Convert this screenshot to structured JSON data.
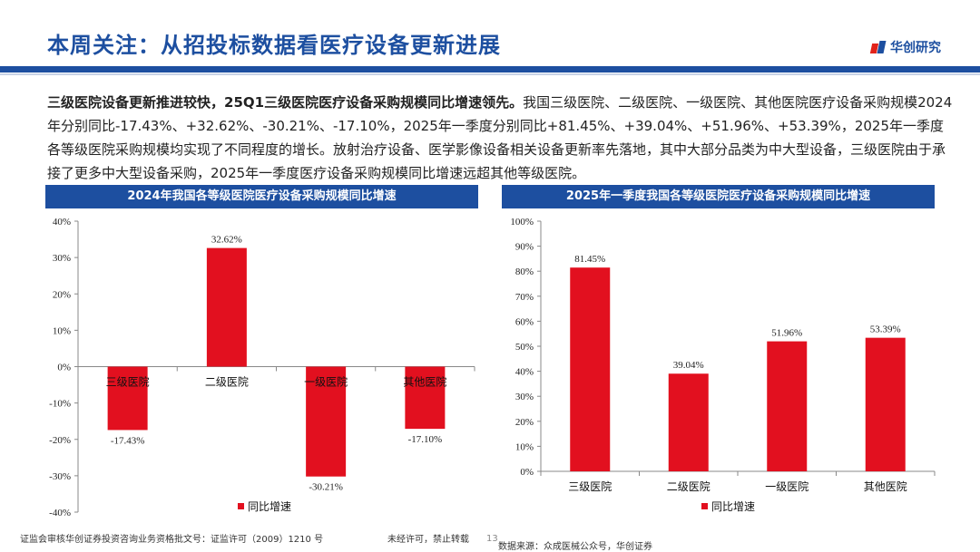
{
  "header": {
    "title": "本周关注：从招投标数据看医疗设备更新进展",
    "logo_text": "华创研究"
  },
  "summary": {
    "bold": "三级医院设备更新推进较快，25Q1三级医院医疗设备采购规模同比增速领先。",
    "text": "我国三级医院、二级医院、一级医院、其他医院医疗设备采购规模2024年分别同比-17.43%、+32.62%、-30.21%、-17.10%，2025年一季度分别同比+81.45%、+39.04%、+51.96%、+53.39%，2025年一季度各等级医院采购规模均实现了不同程度的增长。放射治疗设备、医学影像设备相关设备更新率先落地，其中大部分品类为中大型设备，三级医院由于承接了更多中大型设备采购，2025年一季度医疗设备采购规模同比增速远超其他等级医院。"
  },
  "colors": {
    "brand": "#1d4fa0",
    "bar": "#e2101f"
  },
  "chart_data": [
    {
      "type": "bar",
      "title": "2024年我国各等级医院医疗设备采购规模同比增速",
      "categories": [
        "三级医院",
        "二级医院",
        "一级医院",
        "其他医院"
      ],
      "series": [
        {
          "name": "同比增速",
          "values": [
            -17.43,
            32.62,
            -30.21,
            -17.1
          ]
        }
      ],
      "value_labels": [
        "-17.43%",
        "32.62%",
        "-30.21%",
        "-17.10%"
      ],
      "ylim": [
        -40,
        40
      ],
      "yticks": [
        40,
        30,
        20,
        10,
        0,
        -10,
        -20,
        -30,
        -40
      ],
      "ytick_labels": [
        "40%",
        "30%",
        "20%",
        "10%",
        "0%",
        "-10%",
        "-20%",
        "-30%",
        "-40%"
      ],
      "legend": "bottom",
      "grid": false
    },
    {
      "type": "bar",
      "title": "2025年一季度我国各等级医院医疗设备采购规模同比增速",
      "categories": [
        "三级医院",
        "二级医院",
        "一级医院",
        "其他医院"
      ],
      "series": [
        {
          "name": "同比增速",
          "values": [
            81.45,
            39.04,
            51.96,
            53.39
          ]
        }
      ],
      "value_labels": [
        "81.45%",
        "39.04%",
        "51.96%",
        "53.39%"
      ],
      "ylim": [
        0,
        100
      ],
      "yticks": [
        100,
        90,
        80,
        70,
        60,
        50,
        40,
        30,
        20,
        10,
        0
      ],
      "ytick_labels": [
        "100%",
        "90%",
        "80%",
        "70%",
        "60%",
        "50%",
        "40%",
        "30%",
        "20%",
        "10%",
        "0%"
      ],
      "legend": "bottom",
      "grid": false
    }
  ],
  "footer": {
    "license": "证监会审核华创证券投资咨询业务资格批文号：证监许可（2009）1210 号",
    "notice": "未经许可，禁止转载",
    "page": "13",
    "source": "数据来源：众成医械公众号，华创证券"
  }
}
